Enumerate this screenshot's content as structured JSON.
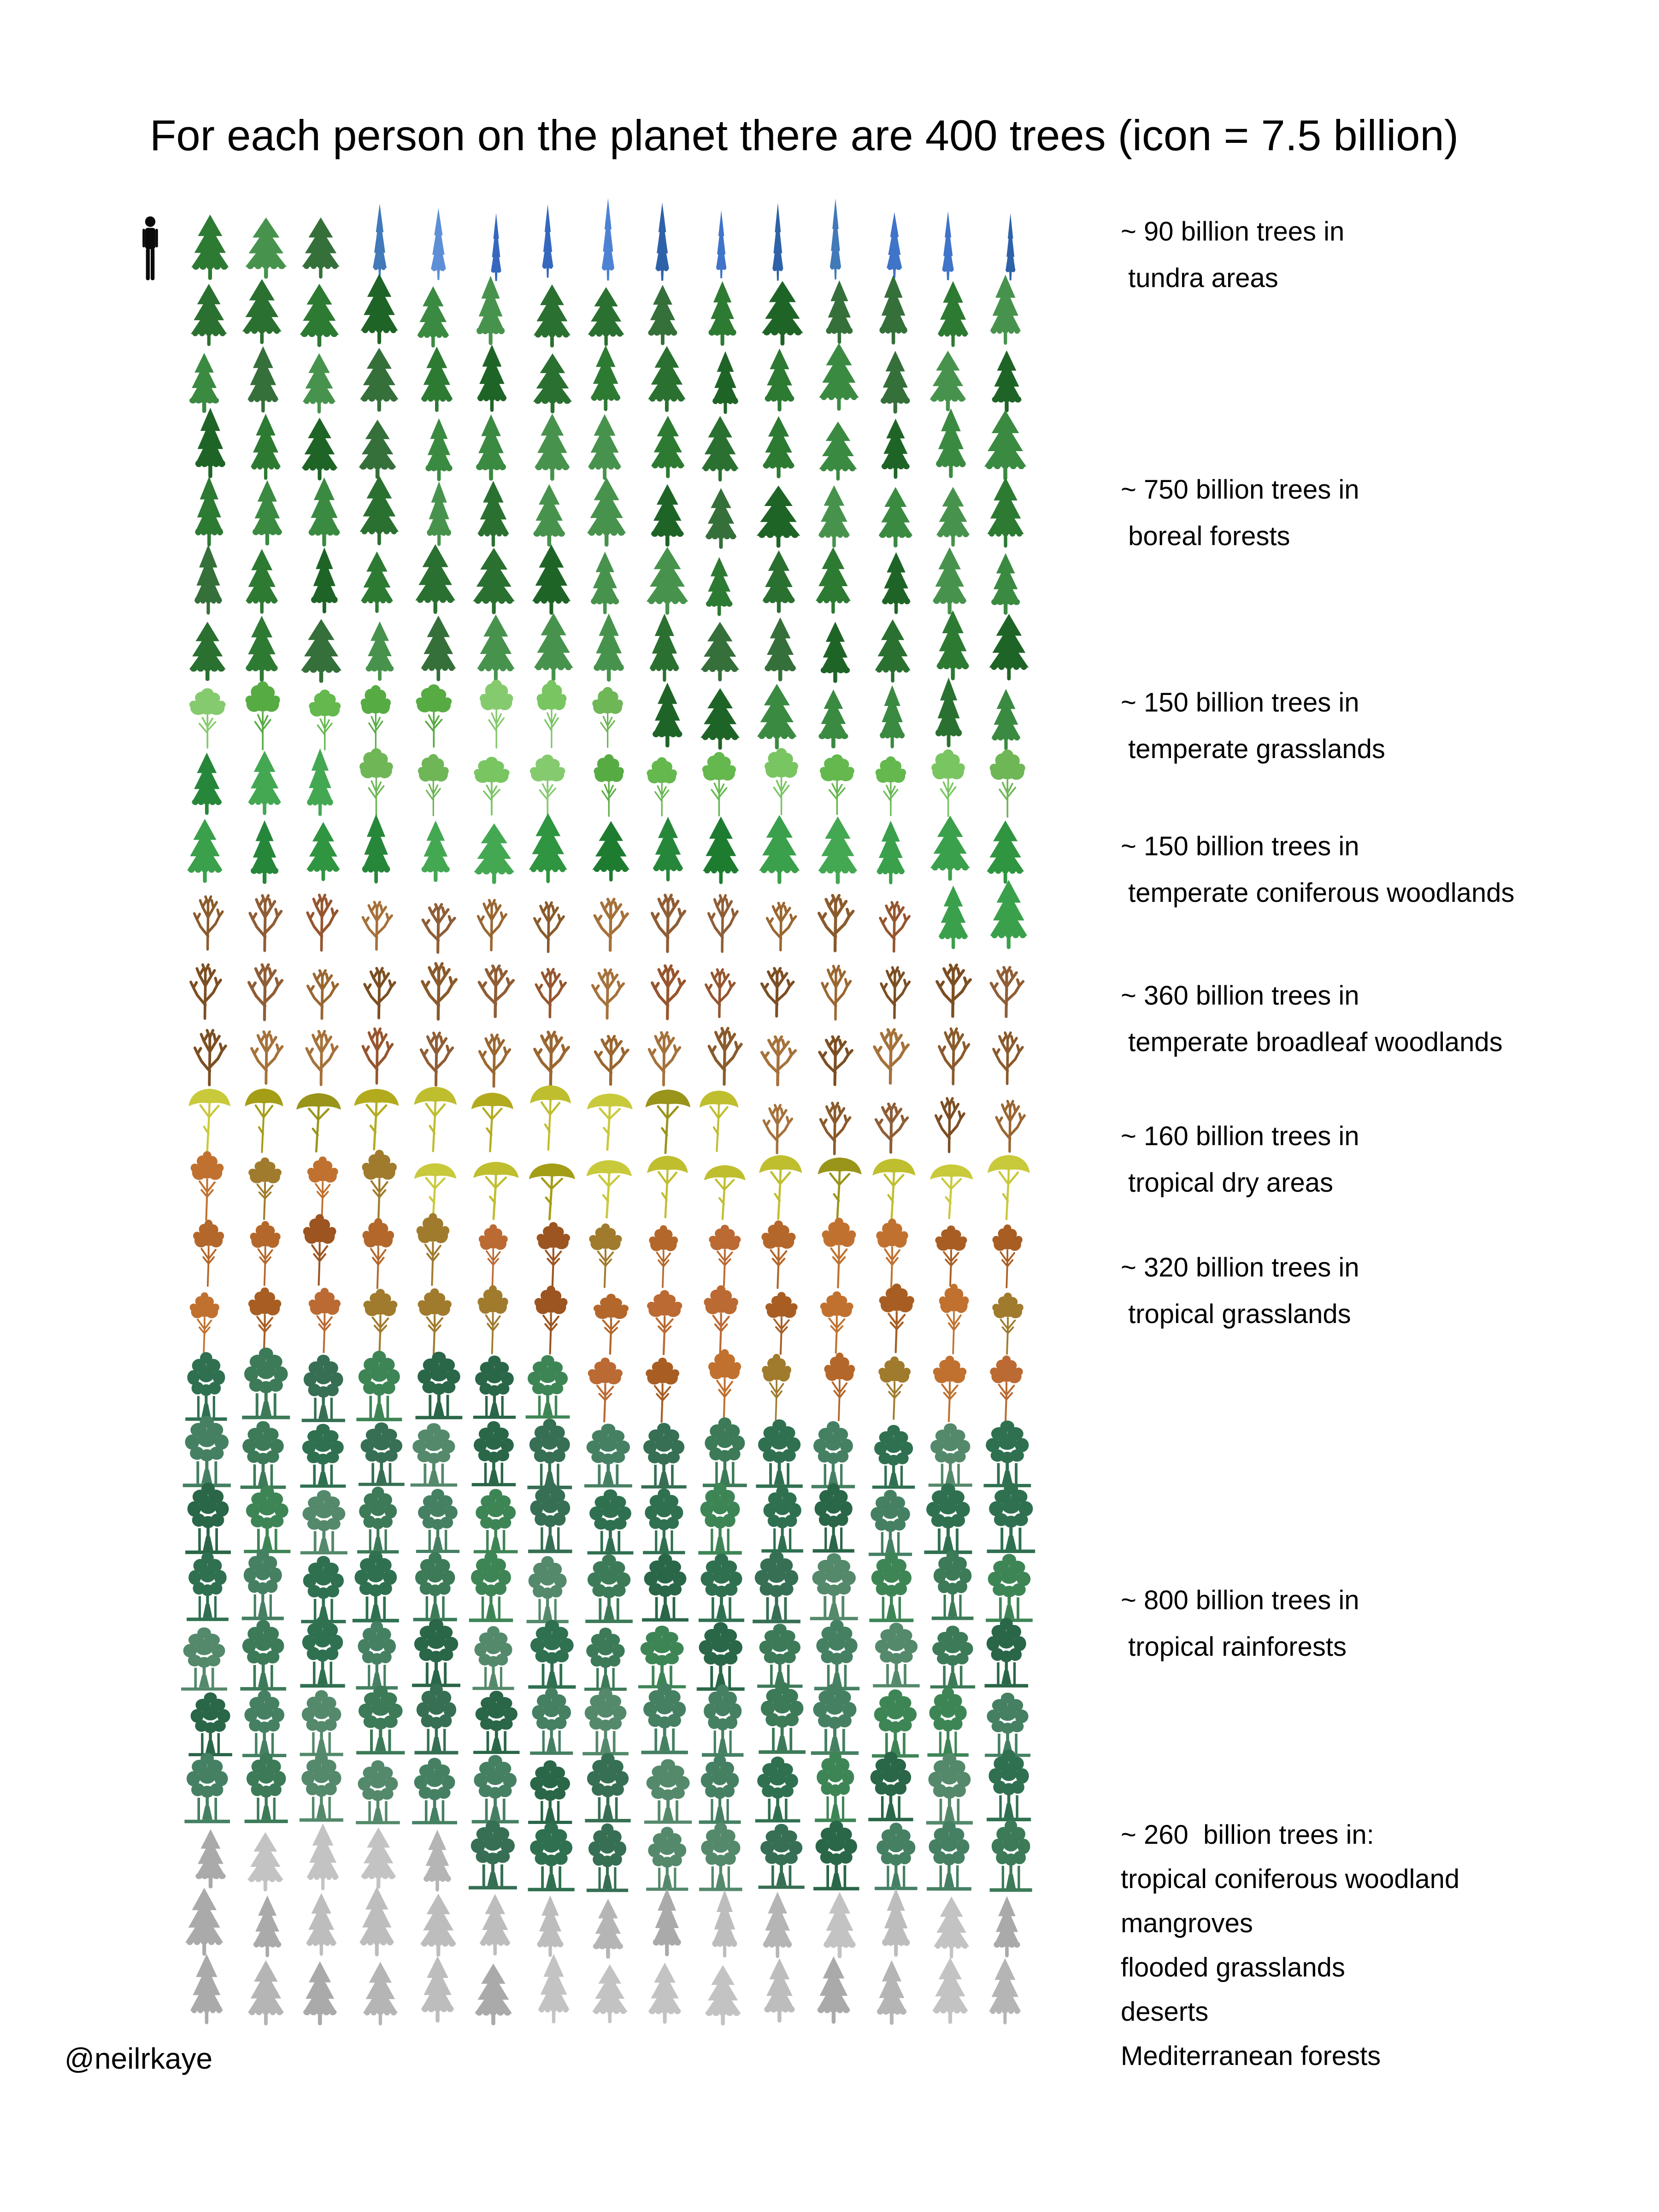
{
  "title": "For each person on the planet there are 400 trees (icon = 7.5 billion)",
  "credit": "@neilrkaye",
  "person_icon": {
    "color": "#0a0a0a",
    "meaning": "one person (7.5 billion people)"
  },
  "grid": {
    "columns": 15,
    "rows": 27,
    "billions_per_icon": 7.5
  },
  "biomes": [
    {
      "id": "tundra",
      "icons": 12,
      "shape": "spruceSlim",
      "colors": [
        "#3f74c8",
        "#3568bd",
        "#4c82d4",
        "#2e62a8",
        "#4179b9",
        "#5d8fd6"
      ],
      "label_lines": [
        "~ 90 billion trees in",
        " tundra areas"
      ]
    },
    {
      "id": "boreal-forests",
      "icons": 100,
      "shape": "fir",
      "colors": [
        "#2d7a33",
        "#1f6427",
        "#3a8a41",
        "#2a7030",
        "#47934d",
        "#356f3a"
      ],
      "label_lines": [
        "~ 750 billion trees in",
        " boreal forests"
      ]
    },
    {
      "id": "temperate-grasslands",
      "icons": 20,
      "shape": "leafy",
      "colors": [
        "#64b84e",
        "#79c562",
        "#57ab43",
        "#86ca6f",
        "#6fb657"
      ],
      "label_lines": [
        "~ 150 billion trees in",
        " temperate grasslands"
      ]
    },
    {
      "id": "temperate-coniferous-woodlands",
      "icons": 20,
      "shape": "fir",
      "colors": [
        "#2f9540",
        "#26873a",
        "#3aa04b",
        "#1e7c31",
        "#44a853"
      ],
      "label_lines": [
        "~ 150 billion trees in",
        " temperate coniferous woodlands"
      ]
    },
    {
      "id": "temperate-broadleaf-woodlands",
      "icons": 48,
      "shape": "bare",
      "colors": [
        "#8a5a2b",
        "#9a6630",
        "#7b4e22",
        "#a5713a",
        "#8f5d35",
        "#96552e"
      ],
      "label_lines": [
        "~ 360 billion trees in",
        " temperate broadleaf woodlands"
      ]
    },
    {
      "id": "tropical-dry-areas",
      "icons": 21,
      "shape": "acacia",
      "colors": [
        "#b3ab1e",
        "#bfbe2e",
        "#a49d16",
        "#c9c93c",
        "#99941a"
      ],
      "label_lines": [
        "~ 160 billion trees in",
        " tropical dry areas"
      ]
    },
    {
      "id": "tropical-grasslands",
      "icons": 42,
      "shape": "savanna",
      "colors": [
        "#b4672a",
        "#c1712f",
        "#a85e23",
        "#a07b2d",
        "#bb6a33",
        "#9c5420"
      ],
      "label_lines": [
        "~ 320 billion trees in",
        " tropical grasslands"
      ]
    },
    {
      "id": "tropical-rainforests",
      "icons": 107,
      "shape": "rainforest",
      "colors": [
        "#2f7050",
        "#3c7a58",
        "#458063",
        "#2a6648",
        "#54896b",
        "#3e8556",
        "#366f53"
      ],
      "label_lines": [
        "~ 800 billion trees in",
        " tropical rainforests"
      ]
    },
    {
      "id": "other-biomes",
      "icons": 35,
      "shape": "fir",
      "colors": [
        "#b5b5b5",
        "#c3c3c3",
        "#aaaaaa",
        "#bdbdbd"
      ],
      "label_lines": [
        "~ 260  billion trees in:",
        "tropical coniferous woodland",
        "mangroves",
        "flooded grasslands",
        "deserts",
        "Mediterranean forests"
      ]
    }
  ],
  "chart_data": {
    "type": "pictogram",
    "title": "For each person on the planet there are 400 trees (icon = 7.5 billion)",
    "unit": "billion trees",
    "billions_per_icon": 7.5,
    "grid_columns": 15,
    "legend_position": "right",
    "categories": [
      "tundra areas",
      "boreal forests",
      "temperate grasslands",
      "temperate coniferous woodlands",
      "temperate broadleaf woodlands",
      "tropical dry areas",
      "tropical grasslands",
      "tropical rainforests",
      "other: tropical coniferous woodland, mangroves, flooded grasslands, deserts, Mediterranean forests"
    ],
    "values": [
      90,
      750,
      150,
      150,
      360,
      160,
      320,
      800,
      260
    ],
    "icon_counts": [
      12,
      100,
      20,
      20,
      48,
      21,
      42,
      107,
      35
    ]
  }
}
